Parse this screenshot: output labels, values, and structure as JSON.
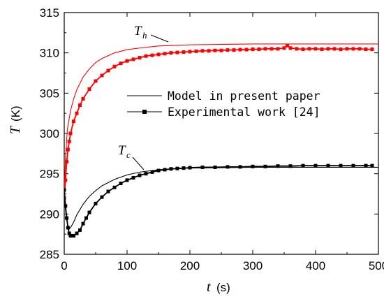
{
  "chart_data": {
    "type": "line",
    "xlabel": {
      "symbol": "t",
      "unit": "(s)"
    },
    "ylabel": {
      "symbol": "T",
      "unit": "(K)"
    },
    "xlim": [
      0,
      500
    ],
    "ylim": [
      285,
      315
    ],
    "xticks": [
      0,
      100,
      200,
      300,
      400,
      500
    ],
    "yticks": [
      285,
      290,
      295,
      300,
      305,
      310,
      315
    ],
    "grid": false,
    "legend_position": "center-right",
    "legend": [
      {
        "label": "Model in present paper",
        "style": "line"
      },
      {
        "label": "Experimental work [24]",
        "style": "line-square-marker"
      }
    ],
    "annotations": [
      {
        "main": "T",
        "sub": "h",
        "points_to": "hot side curves at t≈155 s"
      },
      {
        "main": "T",
        "sub": "c",
        "points_to": "cold side curves at t≈125 s"
      }
    ],
    "series": [
      {
        "color": "#ff0000",
        "style": "line",
        "x": [
          0,
          2,
          5,
          10,
          15,
          20,
          30,
          40,
          50,
          60,
          80,
          100,
          120,
          150,
          200,
          250,
          300,
          400,
          500
        ],
        "y": [
          292.5,
          297,
          300.5,
          302.8,
          304.3,
          305.4,
          307.0,
          308.0,
          308.8,
          309.3,
          310.0,
          310.4,
          310.6,
          310.85,
          311.0,
          311.05,
          311.1,
          311.1,
          311.1
        ]
      },
      {
        "color": "#ff0000",
        "style": "line-square-marker",
        "x": [
          0,
          2,
          4,
          6,
          8,
          10,
          15,
          20,
          25,
          30,
          40,
          50,
          60,
          70,
          80,
          90,
          100,
          110,
          120,
          130,
          140,
          150,
          160,
          170,
          180,
          190,
          200,
          210,
          220,
          230,
          240,
          250,
          260,
          270,
          280,
          290,
          300,
          310,
          320,
          330,
          340,
          350,
          355,
          360,
          370,
          380,
          390,
          400,
          410,
          420,
          430,
          440,
          450,
          460,
          470,
          480,
          490
        ],
        "y": [
          292.0,
          294.2,
          296.5,
          298.0,
          299.0,
          300.0,
          301.5,
          302.5,
          303.5,
          304.3,
          305.5,
          306.5,
          307.2,
          307.8,
          308.3,
          308.7,
          309.0,
          309.2,
          309.4,
          309.6,
          309.7,
          309.8,
          309.9,
          310.0,
          310.05,
          310.1,
          310.15,
          310.2,
          310.25,
          310.25,
          310.3,
          310.3,
          310.35,
          310.35,
          310.4,
          310.4,
          310.45,
          310.45,
          310.5,
          310.5,
          310.5,
          310.6,
          310.9,
          310.6,
          310.5,
          310.45,
          310.5,
          310.5,
          310.45,
          310.5,
          310.5,
          310.45,
          310.5,
          310.5,
          310.5,
          310.45,
          310.45
        ]
      },
      {
        "color": "#000000",
        "style": "line",
        "x": [
          0,
          2,
          4,
          6,
          8,
          10,
          15,
          20,
          30,
          40,
          50,
          60,
          80,
          100,
          120,
          150,
          200,
          250,
          300,
          400,
          500
        ],
        "y": [
          292.5,
          290.5,
          289.2,
          288.5,
          288.2,
          288.3,
          289.0,
          289.9,
          291.2,
          292.2,
          292.9,
          293.5,
          294.3,
          294.85,
          295.2,
          295.5,
          295.7,
          295.75,
          295.8,
          295.8,
          295.8
        ]
      },
      {
        "color": "#000000",
        "style": "line-square-marker",
        "x": [
          0,
          2,
          4,
          6,
          8,
          10,
          15,
          20,
          25,
          30,
          35,
          40,
          50,
          60,
          70,
          80,
          90,
          100,
          110,
          120,
          130,
          140,
          150,
          160,
          170,
          180,
          190,
          200,
          220,
          240,
          260,
          280,
          300,
          320,
          340,
          360,
          380,
          400,
          420,
          440,
          460,
          480,
          490
        ],
        "y": [
          293.0,
          291.0,
          289.5,
          288.3,
          287.6,
          287.3,
          287.3,
          287.6,
          288.0,
          288.8,
          289.5,
          290.2,
          291.3,
          292.1,
          292.8,
          293.3,
          293.8,
          294.2,
          294.5,
          294.8,
          295.0,
          295.2,
          295.4,
          295.5,
          295.6,
          295.65,
          295.7,
          295.75,
          295.8,
          295.8,
          295.85,
          295.85,
          295.9,
          295.9,
          295.95,
          295.95,
          296.0,
          296.0,
          296.0,
          296.0,
          296.0,
          296.0,
          296.0
        ]
      }
    ]
  }
}
